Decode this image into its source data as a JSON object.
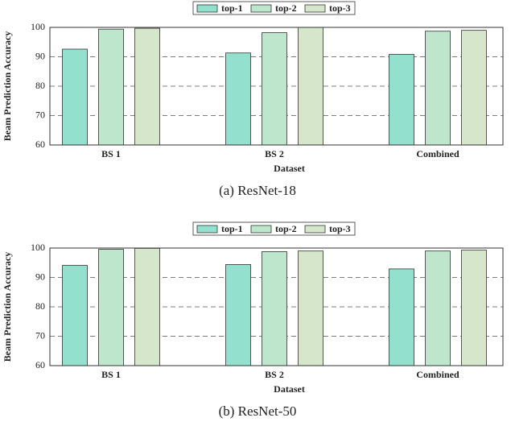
{
  "chart_data": [
    {
      "type": "bar",
      "caption": "(a)  ResNet-18",
      "xlabel": "Dataset",
      "ylabel": "Beam Prediction Accuracy",
      "categories": [
        "BS 1",
        "BS 2",
        "Combined"
      ],
      "series": [
        {
          "name": "top-1",
          "color": "#93e0cf",
          "values": [
            92.6,
            91.3,
            90.8
          ]
        },
        {
          "name": "top-2",
          "color": "#bde6cc",
          "values": [
            99.4,
            98.2,
            98.7
          ]
        },
        {
          "name": "top-3",
          "color": "#d6e6ca",
          "values": [
            99.7,
            100,
            99.0
          ]
        }
      ],
      "ylim": [
        60,
        100
      ],
      "yticks": [
        60,
        70,
        80,
        90,
        100
      ],
      "grid": true,
      "legend": "top"
    },
    {
      "type": "bar",
      "caption": "(b)  ResNet-50",
      "xlabel": "Dataset",
      "ylabel": "Beam Prediction Accuracy",
      "categories": [
        "BS 1",
        "BS 2",
        "Combined"
      ],
      "series": [
        {
          "name": "top-1",
          "color": "#93e0cf",
          "values": [
            94.1,
            94.4,
            92.9
          ]
        },
        {
          "name": "top-2",
          "color": "#bde6cc",
          "values": [
            99.6,
            98.8,
            99.0
          ]
        },
        {
          "name": "top-3",
          "color": "#d6e6ca",
          "values": [
            99.9,
            99.0,
            99.3
          ]
        }
      ],
      "ylim": [
        60,
        100
      ],
      "yticks": [
        60,
        70,
        80,
        90,
        100
      ],
      "grid": true,
      "legend": "top"
    }
  ]
}
